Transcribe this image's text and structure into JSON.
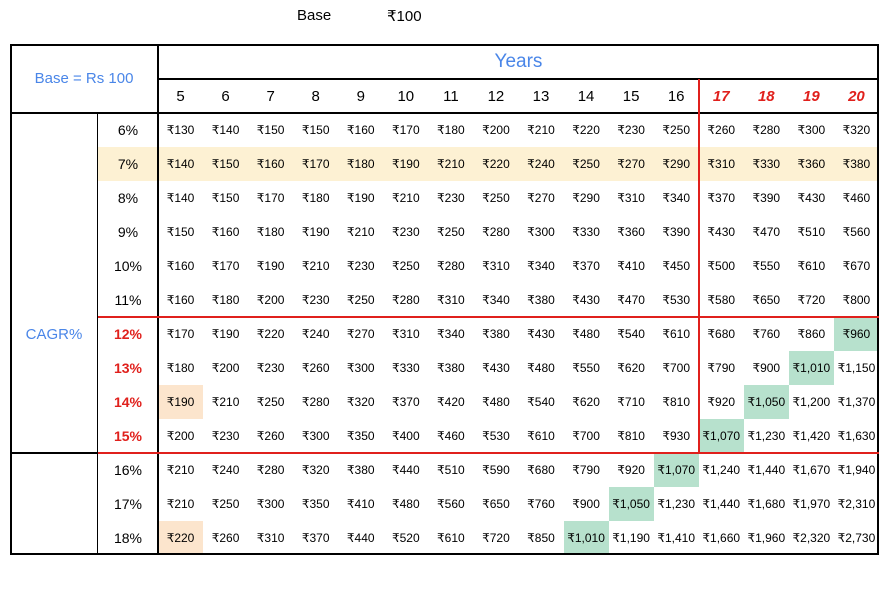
{
  "base_label": "Base",
  "base_value": "₹100",
  "corner_label": "Base = Rs 100",
  "years_label": "Years",
  "cagr_label": "CAGR%",
  "years": [
    "5",
    "6",
    "7",
    "8",
    "9",
    "10",
    "11",
    "12",
    "13",
    "14",
    "15",
    "16",
    "17",
    "18",
    "19",
    "20"
  ],
  "highlight_years": [
    "17",
    "18",
    "19",
    "20"
  ],
  "highlight_rates": [
    "12%",
    "13%",
    "14%",
    "15%"
  ],
  "colors": {
    "red": "#e0201c",
    "blue": "#4a86e8",
    "yellow_row": "#fdf1d3",
    "green": "#b7e1cd",
    "peach": "#fce5cd"
  },
  "rows": [
    {
      "rate": "6%",
      "values": [
        "₹130",
        "₹140",
        "₹150",
        "₹150",
        "₹160",
        "₹170",
        "₹180",
        "₹200",
        "₹210",
        "₹220",
        "₹230",
        "₹250",
        "₹260",
        "₹280",
        "₹300",
        "₹320"
      ]
    },
    {
      "rate": "7%",
      "values": [
        "₹140",
        "₹150",
        "₹160",
        "₹170",
        "₹180",
        "₹190",
        "₹210",
        "₹220",
        "₹240",
        "₹250",
        "₹270",
        "₹290",
        "₹310",
        "₹330",
        "₹360",
        "₹380"
      ]
    },
    {
      "rate": "8%",
      "values": [
        "₹140",
        "₹150",
        "₹170",
        "₹180",
        "₹190",
        "₹210",
        "₹230",
        "₹250",
        "₹270",
        "₹290",
        "₹310",
        "₹340",
        "₹370",
        "₹390",
        "₹430",
        "₹460"
      ]
    },
    {
      "rate": "9%",
      "values": [
        "₹150",
        "₹160",
        "₹180",
        "₹190",
        "₹210",
        "₹230",
        "₹250",
        "₹280",
        "₹300",
        "₹330",
        "₹360",
        "₹390",
        "₹430",
        "₹470",
        "₹510",
        "₹560"
      ]
    },
    {
      "rate": "10%",
      "values": [
        "₹160",
        "₹170",
        "₹190",
        "₹210",
        "₹230",
        "₹250",
        "₹280",
        "₹310",
        "₹340",
        "₹370",
        "₹410",
        "₹450",
        "₹500",
        "₹550",
        "₹610",
        "₹670"
      ]
    },
    {
      "rate": "11%",
      "values": [
        "₹160",
        "₹180",
        "₹200",
        "₹230",
        "₹250",
        "₹280",
        "₹310",
        "₹340",
        "₹380",
        "₹430",
        "₹470",
        "₹530",
        "₹580",
        "₹650",
        "₹720",
        "₹800"
      ]
    },
    {
      "rate": "12%",
      "values": [
        "₹170",
        "₹190",
        "₹220",
        "₹240",
        "₹270",
        "₹310",
        "₹340",
        "₹380",
        "₹430",
        "₹480",
        "₹540",
        "₹610",
        "₹680",
        "₹760",
        "₹860",
        "₹960"
      ]
    },
    {
      "rate": "13%",
      "values": [
        "₹180",
        "₹200",
        "₹230",
        "₹260",
        "₹300",
        "₹330",
        "₹380",
        "₹430",
        "₹480",
        "₹550",
        "₹620",
        "₹700",
        "₹790",
        "₹900",
        "₹1,010",
        "₹1,150"
      ]
    },
    {
      "rate": "14%",
      "values": [
        "₹190",
        "₹210",
        "₹250",
        "₹280",
        "₹320",
        "₹370",
        "₹420",
        "₹480",
        "₹540",
        "₹620",
        "₹710",
        "₹810",
        "₹920",
        "₹1,050",
        "₹1,200",
        "₹1,370"
      ]
    },
    {
      "rate": "15%",
      "values": [
        "₹200",
        "₹230",
        "₹260",
        "₹300",
        "₹350",
        "₹400",
        "₹460",
        "₹530",
        "₹610",
        "₹700",
        "₹810",
        "₹930",
        "₹1,070",
        "₹1,230",
        "₹1,420",
        "₹1,630"
      ]
    },
    {
      "rate": "16%",
      "values": [
        "₹210",
        "₹240",
        "₹280",
        "₹320",
        "₹380",
        "₹440",
        "₹510",
        "₹590",
        "₹680",
        "₹790",
        "₹920",
        "₹1,070",
        "₹1,240",
        "₹1,440",
        "₹1,670",
        "₹1,940"
      ]
    },
    {
      "rate": "17%",
      "values": [
        "₹210",
        "₹250",
        "₹300",
        "₹350",
        "₹410",
        "₹480",
        "₹560",
        "₹650",
        "₹760",
        "₹900",
        "₹1,050",
        "₹1,230",
        "₹1,440",
        "₹1,680",
        "₹1,970",
        "₹2,310"
      ]
    },
    {
      "rate": "18%",
      "values": [
        "₹220",
        "₹260",
        "₹310",
        "₹370",
        "₹440",
        "₹520",
        "₹610",
        "₹720",
        "₹850",
        "₹1,010",
        "₹1,190",
        "₹1,410",
        "₹1,660",
        "₹1,960",
        "₹2,320",
        "₹2,730"
      ]
    }
  ],
  "green_cells": [
    [
      6,
      15
    ],
    [
      7,
      14
    ],
    [
      8,
      13
    ],
    [
      9,
      12
    ],
    [
      10,
      11
    ],
    [
      11,
      10
    ],
    [
      12,
      9
    ]
  ],
  "peach_cells": [
    [
      8,
      0
    ],
    [
      12,
      0
    ]
  ],
  "yellow_row": 1
}
